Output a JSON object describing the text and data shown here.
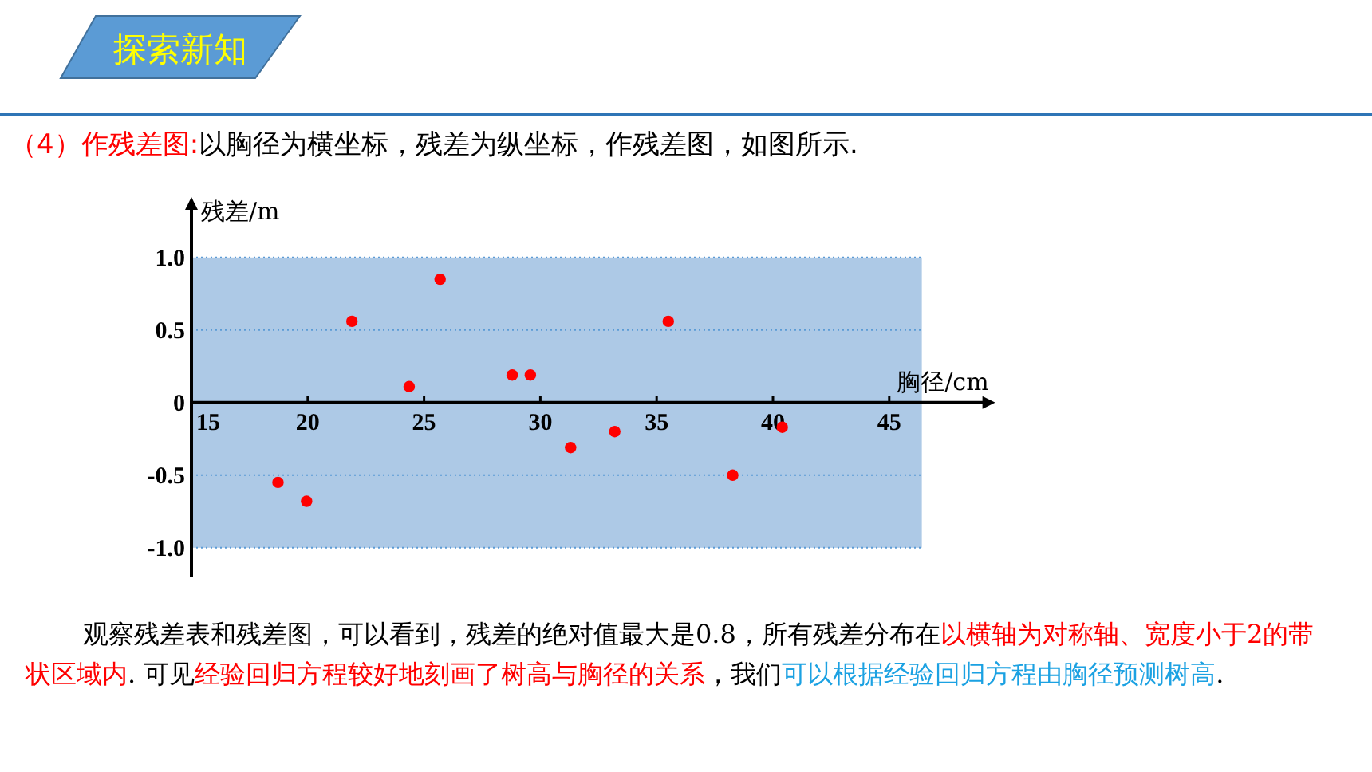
{
  "chart_data": {
    "type": "scatter",
    "title": "探索新知",
    "xlabel": "胸径/cm",
    "ylabel": "残差/m",
    "x": [
      18.72,
      19.95,
      21.9,
      24.36,
      25.69,
      28.79,
      29.57,
      31.3,
      33.2,
      35.5,
      38.27,
      40.4
    ],
    "series": [
      {
        "color": "#ff0000",
        "values": [
          -0.55,
          -0.68,
          0.56,
          0.11,
          0.85,
          0.19,
          0.19,
          -0.31,
          -0.2,
          0.56,
          -0.5,
          -0.17
        ]
      }
    ],
    "xlim": [
      15,
      46.4
    ],
    "ylim": [
      -1.2,
      1.35
    ],
    "xticks": [
      15,
      20,
      25,
      30,
      35,
      40,
      45
    ],
    "yticks": [
      {
        "value": 1,
        "label": "1.0"
      },
      0.5,
      0,
      -0.5,
      {
        "value": -1,
        "label": "-1.0"
      }
    ],
    "grid": "y",
    "marker": "circle",
    "bands": [
      {
        "axis": "y",
        "from": -1,
        "to": 1,
        "color": "#adc9e6"
      }
    ],
    "annotations": [
      "（4）作残差图:",
      "以胸径为横坐标，残差为纵坐标，作残差图，如图所示.",
      "观察残差表和残差图，可以看到，残差的绝对值最大是0.8，所有残差分布在",
      "以横轴为对称轴、宽度小于2的带状区域内",
      ". 可见",
      "经验回归方程较好地刻画了树高与胸径的关系",
      "，我们",
      "可以根据经验回归方程由胸径预测树高",
      "."
    ]
  }
}
